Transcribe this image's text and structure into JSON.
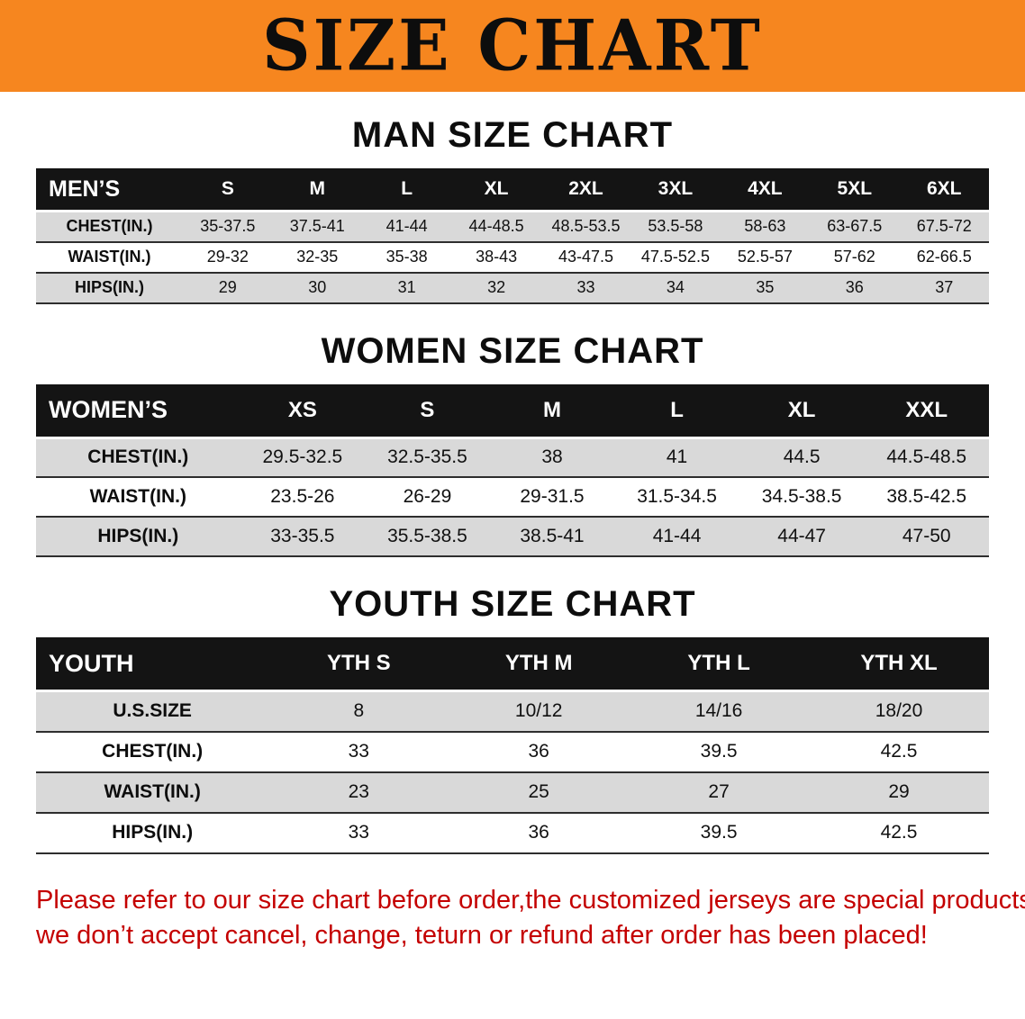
{
  "banner": {
    "title": "SIZE CHART"
  },
  "colors": {
    "banner_bg": "#f6861f",
    "header_black": "#141414",
    "row_gray": "#d9d9d9",
    "note_red": "#c40000"
  },
  "sections": {
    "men": {
      "heading": "MAN SIZE CHART",
      "header": [
        "MEN’S",
        "S",
        "M",
        "L",
        "XL",
        "2XL",
        "3XL",
        "4XL",
        "5XL",
        "6XL"
      ],
      "rows": [
        {
          "label": "CHEST(IN.)",
          "values": [
            "35-37.5",
            "37.5-41",
            "41-44",
            "44-48.5",
            "48.5-53.5",
            "53.5-58",
            "58-63",
            "63-67.5",
            "67.5-72"
          ]
        },
        {
          "label": "WAIST(IN.)",
          "values": [
            "29-32",
            "32-35",
            "35-38",
            "38-43",
            "43-47.5",
            "47.5-52.5",
            "52.5-57",
            "57-62",
            "62-66.5"
          ]
        },
        {
          "label": "HIPS(IN.)",
          "values": [
            "29",
            "30",
            "31",
            "32",
            "33",
            "34",
            "35",
            "36",
            "37"
          ]
        }
      ]
    },
    "women": {
      "heading": "WOMEN SIZE CHART",
      "header": [
        "WOMEN’S",
        "XS",
        "S",
        "M",
        "L",
        "XL",
        "XXL"
      ],
      "rows": [
        {
          "label": "CHEST(IN.)",
          "values": [
            "29.5-32.5",
            "32.5-35.5",
            "38",
            "41",
            "44.5",
            "44.5-48.5"
          ]
        },
        {
          "label": "WAIST(IN.)",
          "values": [
            "23.5-26",
            "26-29",
            "29-31.5",
            "31.5-34.5",
            "34.5-38.5",
            "38.5-42.5"
          ]
        },
        {
          "label": "HIPS(IN.)",
          "values": [
            "33-35.5",
            "35.5-38.5",
            "38.5-41",
            "41-44",
            "44-47",
            "47-50"
          ]
        }
      ]
    },
    "youth": {
      "heading": "YOUTH SIZE CHART",
      "header": [
        "YOUTH",
        "YTH S",
        "YTH M",
        "YTH L",
        "YTH XL"
      ],
      "rows": [
        {
          "label": "U.S.SIZE",
          "values": [
            "8",
            "10/12",
            "14/16",
            "18/20"
          ]
        },
        {
          "label": "CHEST(IN.)",
          "values": [
            "33",
            "36",
            "39.5",
            "42.5"
          ]
        },
        {
          "label": "WAIST(IN.)",
          "values": [
            "23",
            "25",
            "27",
            "29"
          ]
        },
        {
          "label": "HIPS(IN.)",
          "values": [
            "33",
            "36",
            "39.5",
            "42.5"
          ]
        }
      ]
    }
  },
  "footer": {
    "line1": "Please refer to our size chart before order,the customized jerseys are special products,",
    "line2": "we don’t accept cancel, change, teturn or refund after order has been placed!"
  }
}
